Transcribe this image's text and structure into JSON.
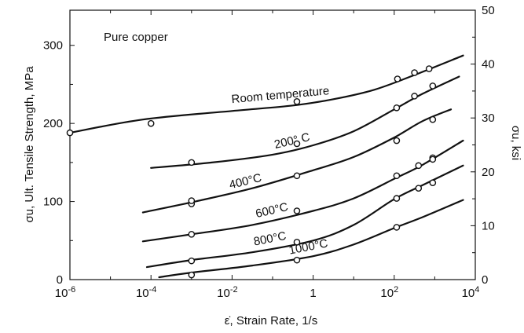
{
  "chart_data": {
    "type": "line",
    "title": "Pure copper",
    "xlabel": "ε̇, Strain Rate, 1/s",
    "ylabel": "σu, Ult. Tensile Strength, MPa",
    "ylabel_right": "σu, ksi",
    "xscale": "log",
    "xlim_log10": [
      -6,
      4
    ],
    "ylim": [
      0,
      345
    ],
    "ylim_right_ksi": [
      0,
      50
    ],
    "x_ticks": [
      {
        "base": "10",
        "exp": "-6",
        "log": -6
      },
      {
        "base": "10",
        "exp": "-4",
        "log": -4
      },
      {
        "base": "10",
        "exp": "-2",
        "log": -2
      },
      {
        "base": "1",
        "exp": "",
        "log": 0
      },
      {
        "base": "10",
        "exp": "2",
        "log": 2
      },
      {
        "base": "10",
        "exp": "4",
        "log": 4
      }
    ],
    "y_ticks": [
      0,
      100,
      200,
      300
    ],
    "y_right_ticks": [
      0,
      10,
      20,
      30,
      40,
      50
    ],
    "grid": false,
    "series": [
      {
        "name": "Room temperature",
        "curve_log10x": [
          -6,
          -4.2,
          -2,
          -0.5,
          0.5,
          1.5,
          2.5,
          3.7
        ],
        "curve_y": [
          188,
          205,
          216,
          223,
          231,
          243,
          262,
          287
        ],
        "points_log10x": [
          -6,
          -4,
          -0.4,
          2.08,
          2.5,
          2.86
        ],
        "points_y": [
          188,
          200,
          228,
          257,
          265,
          270
        ]
      },
      {
        "name": "200° C",
        "curve_log10x": [
          -4,
          -2.5,
          -1,
          0,
          1,
          2,
          2.7,
          3.6
        ],
        "curve_y": [
          143,
          150,
          160,
          172,
          190,
          218,
          238,
          260
        ],
        "points_log10x": [
          -3,
          -0.4,
          2.06,
          2.5,
          2.95
        ],
        "points_y": [
          150,
          174,
          220,
          235,
          248
        ]
      },
      {
        "name": "400°C",
        "curve_log10x": [
          -4.2,
          -3,
          -1.5,
          0,
          1,
          2,
          2.7,
          3.4
        ],
        "curve_y": [
          86,
          99,
          117,
          140,
          157,
          182,
          203,
          218
        ],
        "points_log10x": [
          -3,
          -3,
          -0.4,
          2.06,
          2.95
        ],
        "points_y": [
          97,
          101,
          133,
          178,
          205
        ]
      },
      {
        "name": "600°C",
        "curve_log10x": [
          -4.2,
          -3,
          -1.5,
          0,
          1,
          2,
          2.7,
          3.7
        ],
        "curve_y": [
          49,
          58,
          70,
          88,
          104,
          129,
          147,
          178
        ],
        "points_log10x": [
          -3,
          -0.4,
          2.06,
          2.6,
          2.95,
          2.95
        ],
        "points_y": [
          58,
          88,
          133,
          146,
          156,
          154
        ]
      },
      {
        "name": "800°C",
        "curve_log10x": [
          -4.1,
          -3,
          -1.5,
          0,
          1,
          2,
          2.7,
          3.7
        ],
        "curve_y": [
          16,
          25,
          35,
          50,
          70,
          103,
          121,
          146
        ],
        "points_log10x": [
          -3,
          -0.4,
          2.06,
          2.6,
          2.95
        ],
        "points_y": [
          24,
          48,
          104,
          117,
          124
        ]
      },
      {
        "name": "1000°C",
        "curve_log10x": [
          -3.8,
          -3,
          -1.5,
          0,
          1,
          2,
          2.7,
          3.7
        ],
        "curve_y": [
          3,
          9,
          18,
          30,
          45,
          66,
          80,
          102
        ],
        "points_log10x": [
          -3,
          -0.4,
          2.06
        ],
        "points_y": [
          6,
          25,
          67
        ]
      }
    ]
  }
}
